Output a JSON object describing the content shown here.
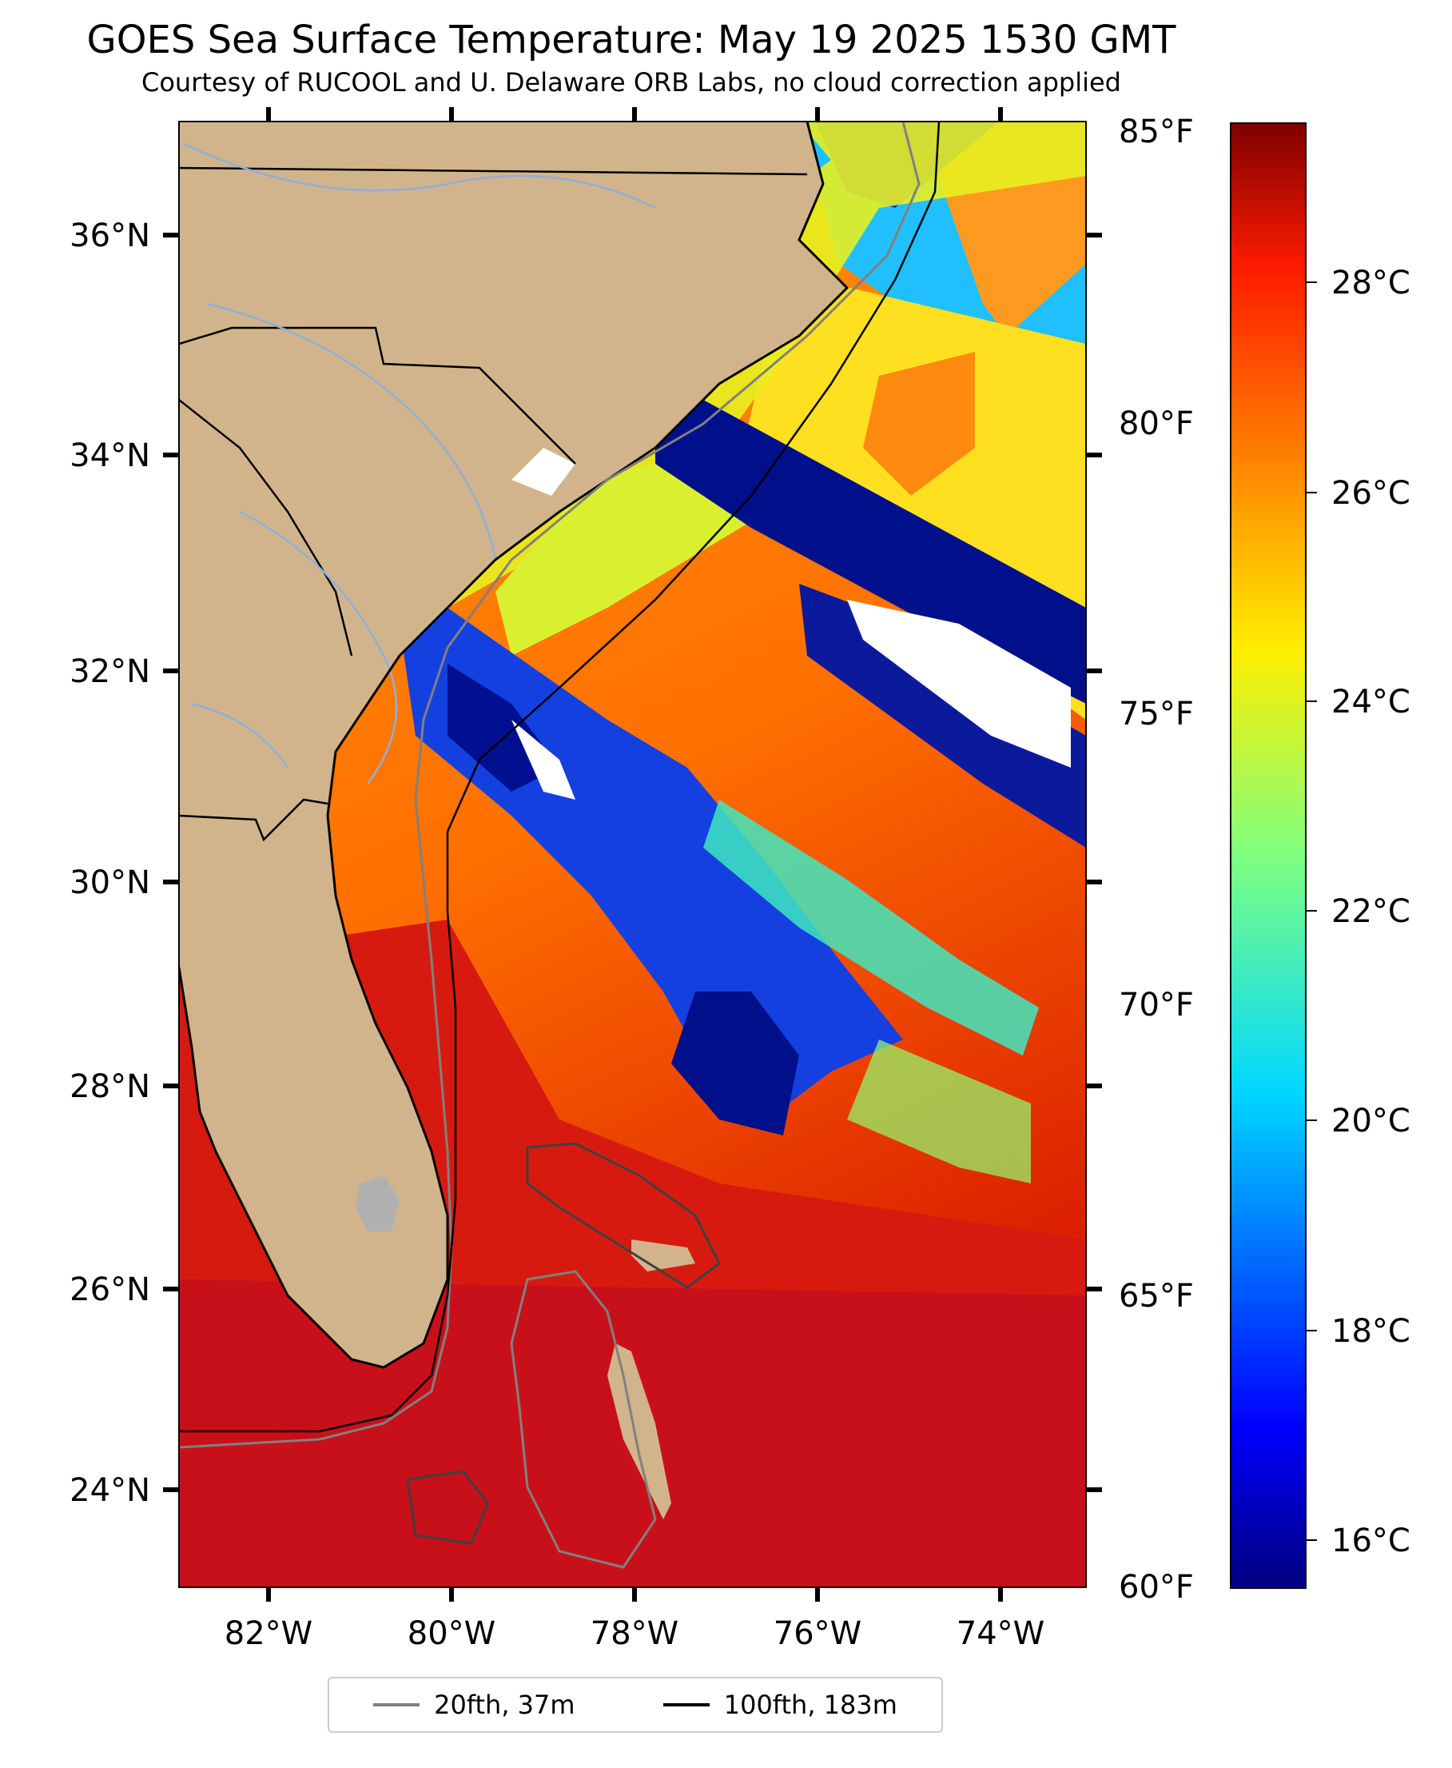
{
  "title": "GOES Sea Surface Temperature: May 19 2025 1530 GMT",
  "subtitle": "Courtesy of RUCOOL and U. Delaware ORB Labs, no cloud correction applied",
  "map": {
    "lat_labels": [
      "36°N",
      "34°N",
      "32°N",
      "30°N",
      "28°N",
      "26°N",
      "24°N"
    ],
    "lon_labels": [
      "82°W",
      "80°W",
      "78°W",
      "76°W",
      "74°W"
    ],
    "lat_range": [
      23.1,
      37.1
    ],
    "lon_range": [
      -83.0,
      -73.0
    ],
    "land_color": "#d2b48c",
    "ocean_colormap": "jet"
  },
  "colorbar": {
    "fahrenheit_labels": [
      "85°F",
      "80°F",
      "75°F",
      "70°F",
      "65°F",
      "60°F"
    ],
    "celsius_labels": [
      "28°C",
      "26°C",
      "24°C",
      "22°C",
      "20°C",
      "18°C",
      "16°C"
    ],
    "range_f": [
      60,
      85
    ],
    "colormap": "jet"
  },
  "legend": {
    "items": [
      {
        "label": "20fth, 37m",
        "color": "#808080"
      },
      {
        "label": "100fth, 183m",
        "color": "#000000"
      }
    ]
  }
}
